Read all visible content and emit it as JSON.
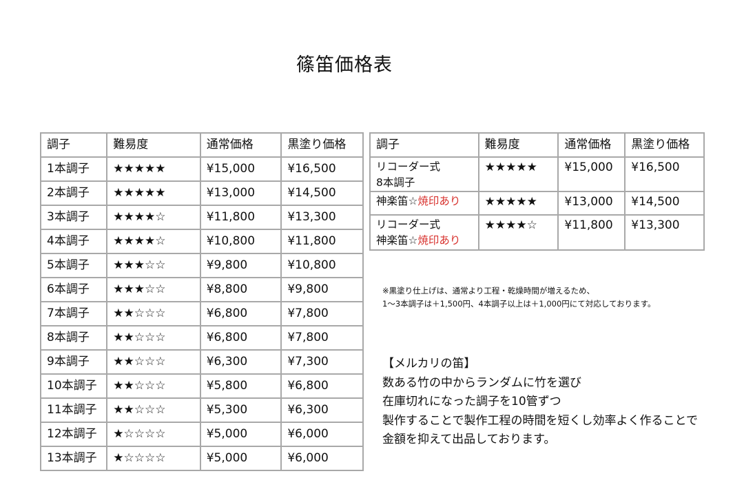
{
  "title": "篠笛価格表",
  "left_table": {
    "headers": [
      "調子",
      "難易度",
      "通常価格",
      "黒塗り価格"
    ],
    "rows": [
      [
        "1本調子",
        "★★★★★",
        "¥15,000",
        "¥16,500"
      ],
      [
        "2本調子",
        "★★★★★",
        "¥13,000",
        "¥14,500"
      ],
      [
        "3本調子",
        "★★★★☆",
        "¥11,800",
        "¥13,300"
      ],
      [
        "4本調子",
        "★★★★☆",
        "¥10,800",
        "¥11,800"
      ],
      [
        "5本調子",
        "★★★☆☆",
        "¥9,800",
        "¥10,800"
      ],
      [
        "6本調子",
        "★★★☆☆",
        "¥8,800",
        "¥9,800"
      ],
      [
        "7本調子",
        "★★☆☆☆",
        "¥6,800",
        "¥7,800"
      ],
      [
        "8本調子",
        "★★☆☆☆",
        "¥6,800",
        "¥7,800"
      ],
      [
        "9本調子",
        "★★☆☆☆",
        "¥6,300",
        "¥7,300"
      ],
      [
        "10本調子",
        "★★☆☆☆",
        "¥5,800",
        "¥6,800"
      ],
      [
        "11本調子",
        "★★☆☆☆",
        "¥5,300",
        "¥6,300"
      ],
      [
        "12本調子",
        "★☆☆☆☆",
        "¥5,000",
        "¥6,000"
      ],
      [
        "13本調子",
        "★☆☆☆☆",
        "¥5,000",
        "¥6,000"
      ]
    ]
  },
  "right_table": {
    "headers": [
      "調子",
      "難易度",
      "通常価格",
      "黒塗り価格"
    ],
    "rows": [
      {
        "line1": "リコーダー式",
        "line2": "8本調子",
        "line2_red": "",
        "stars": "★★★★★",
        "normal": "¥15,000",
        "black": "¥16,500"
      },
      {
        "line1": "",
        "line2": "神楽笛☆",
        "line2_red": "焼印あり",
        "stars": "★★★★★",
        "normal": "¥13,000",
        "black": "¥14,500"
      },
      {
        "line1": "リコーダー式",
        "line2": "神楽笛☆",
        "line2_red": "焼印あり",
        "stars": "★★★★☆",
        "normal": "¥11,800",
        "black": "¥13,300"
      }
    ]
  },
  "note": {
    "line1": "※黒塗り仕上げは、通常より工程・乾燥時間が増えるため、",
    "line2": "1〜3本調子は＋1,500円、4本調子以上は＋1,000円にて対応しております。"
  },
  "mercari": {
    "heading": "【メルカリの笛】",
    "lines": [
      "数ある竹の中からランダムに竹を選び",
      "在庫切れになった調子を10管ずつ",
      "製作することで製作工程の時間を短くし効率よく作ることで",
      "金額を抑えて出品しております。"
    ]
  },
  "colors": {
    "accent_red": "#d8322e",
    "border": "#a8a8a8"
  }
}
